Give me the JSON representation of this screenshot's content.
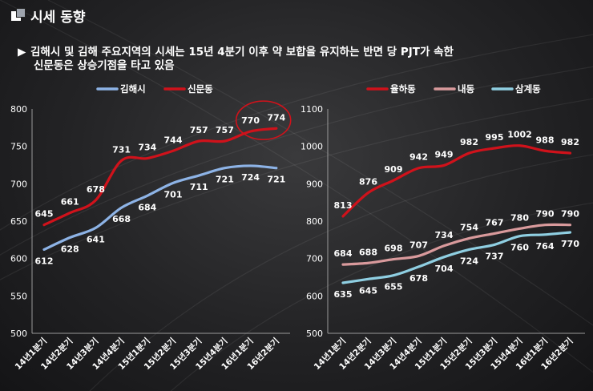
{
  "header": {
    "icon": "window-squares-icon",
    "title": "시세 동향"
  },
  "summary": {
    "bullet": "▶",
    "line1": "김해시 및 김해 주요지역의 시세는  15년 4분기 이후 약 보합을 유지하는 반면 당 PJT가 속한",
    "line2": "신문동은 상승기점을 타고 있음"
  },
  "chart_data": [
    {
      "type": "line",
      "categories": [
        "14년1분기",
        "14년2분기",
        "14년3분기",
        "14년4분기",
        "15년1분기",
        "15년2분기",
        "15년3분기",
        "15년4분기",
        "16년1분기",
        "16년2분기"
      ],
      "ylim": [
        500,
        800
      ],
      "yticks": [
        "500",
        "550",
        "600",
        "650",
        "700",
        "750",
        "800"
      ],
      "legend_position": "top",
      "series": [
        {
          "name": "김해시",
          "color": "#8db3e6",
          "values": [
            612,
            628,
            641,
            668,
            684,
            701,
            711,
            721,
            724,
            721
          ],
          "labels": [
            "612",
            "628",
            "641",
            "668",
            "684",
            "701",
            "711",
            "721",
            "724",
            "721"
          ],
          "label_pos": "below"
        },
        {
          "name": "신문동",
          "color": "#d0121b",
          "values": [
            645,
            661,
            678,
            731,
            734,
            744,
            757,
            757,
            770,
            774
          ],
          "labels": [
            "645",
            "661",
            "678",
            "731",
            "734",
            "744",
            "757",
            "757",
            "770",
            "774"
          ],
          "label_pos": "above"
        }
      ],
      "annotation": {
        "type": "circle",
        "color": "#d0121b",
        "categories": [
          "16년1분기",
          "16년2분기"
        ]
      }
    },
    {
      "type": "line",
      "categories": [
        "14년1분기",
        "14년2분기",
        "14년3분기",
        "14년4분기",
        "15년1분기",
        "15년2분기",
        "15년3분기",
        "15년4분기",
        "16년1분기",
        "16년2분기"
      ],
      "ylim": [
        500,
        1100
      ],
      "yticks": [
        "500",
        "600",
        "700",
        "800",
        "900",
        "1000",
        "1100"
      ],
      "legend_position": "top",
      "series": [
        {
          "name": "율하동",
          "color": "#d0121b",
          "values": [
            813,
            876,
            909,
            942,
            949,
            982,
            995,
            1002,
            988,
            982
          ],
          "labels": [
            "813",
            "876",
            "909",
            "942",
            "949",
            "982",
            "995",
            "1002",
            "988",
            "982"
          ],
          "label_pos": "above"
        },
        {
          "name": "내동",
          "color": "#d99a9c",
          "values": [
            684,
            688,
            698,
            707,
            734,
            754,
            767,
            780,
            790,
            790
          ],
          "labels": [
            "684",
            "688",
            "698",
            "707",
            "734",
            "754",
            "767",
            "780",
            "790",
            "790"
          ],
          "label_pos": "above"
        },
        {
          "name": "삼계동",
          "color": "#8fcfe2",
          "values": [
            635,
            645,
            655,
            678,
            704,
            724,
            737,
            760,
            764,
            770
          ],
          "labels": [
            "635",
            "645",
            "655",
            "678",
            "704",
            "724",
            "737",
            "760",
            "764",
            "770"
          ],
          "label_pos": "below"
        }
      ]
    }
  ]
}
